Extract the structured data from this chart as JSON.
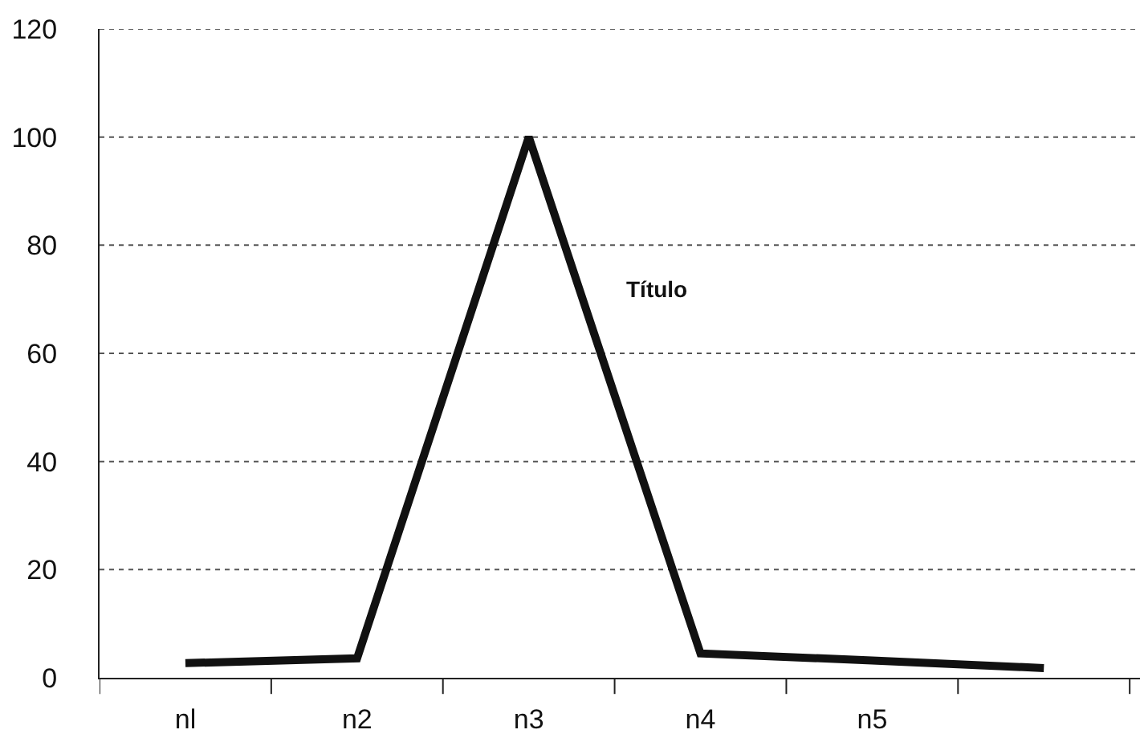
{
  "chart_data": {
    "type": "line",
    "categories": [
      "nl",
      "n2",
      "n3",
      "n4",
      "n5",
      null
    ],
    "series": [
      {
        "color": "#111111",
        "values": [
          2.7,
          3.6,
          100,
          4.5,
          3.2,
          1.8
        ]
      }
    ],
    "ylim": [
      0,
      120
    ],
    "yticks": [
      0,
      20,
      40,
      60,
      80,
      100,
      120
    ],
    "grid": "y",
    "marker": "none",
    "line_style": "solid",
    "annotations": [
      "Título"
    ]
  }
}
